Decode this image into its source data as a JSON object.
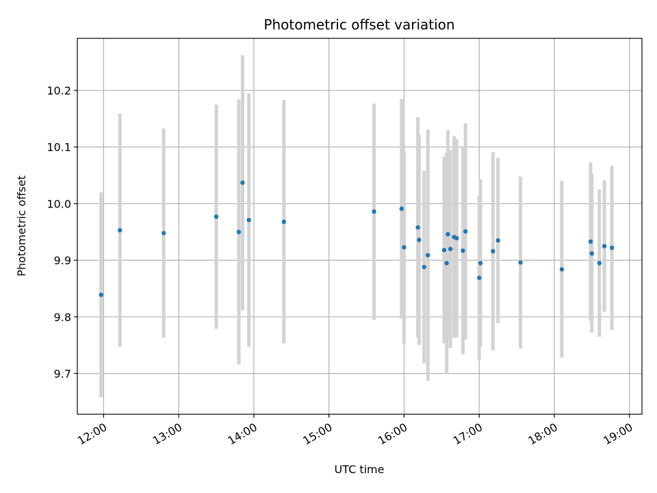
{
  "chart_data": {
    "type": "scatter",
    "title": "Photometric offset variation",
    "xlabel": "UTC time",
    "ylabel": "Photometric offset",
    "x_axis_type": "time",
    "xlim": [
      "11:39",
      "19:10"
    ],
    "ylim": [
      9.628,
      10.292
    ],
    "x_ticks": [
      "12:00",
      "13:00",
      "14:00",
      "15:00",
      "16:00",
      "17:00",
      "18:00",
      "19:00"
    ],
    "y_ticks": [
      "9.7",
      "9.8",
      "9.9",
      "10.0",
      "10.1",
      "10.2"
    ],
    "grid": true,
    "colors": {
      "point": "#1f77b4",
      "errorbar": "#d3d3d3",
      "grid": "#b0b0b0"
    },
    "series": [
      {
        "points": [
          {
            "t": "11:58",
            "y": 9.839,
            "err": 0.181
          },
          {
            "t": "12:13",
            "y": 9.953,
            "err": 0.206
          },
          {
            "t": "12:48",
            "y": 9.948,
            "err": 0.185
          },
          {
            "t": "13:30",
            "y": 9.977,
            "err": 0.198
          },
          {
            "t": "13:48",
            "y": 9.95,
            "err": 0.234
          },
          {
            "t": "13:51",
            "y": 10.037,
            "err": 0.225
          },
          {
            "t": "13:56",
            "y": 9.971,
            "err": 0.224
          },
          {
            "t": "14:24",
            "y": 9.968,
            "err": 0.215
          },
          {
            "t": "15:36",
            "y": 9.986,
            "err": 0.191
          },
          {
            "t": "15:58",
            "y": 9.991,
            "err": 0.194
          },
          {
            "t": "16:00",
            "y": 9.923,
            "err": 0.17
          },
          {
            "t": "16:11",
            "y": 9.958,
            "err": 0.195
          },
          {
            "t": "16:12",
            "y": 9.936,
            "err": 0.186
          },
          {
            "t": "16:16",
            "y": 9.888,
            "err": 0.17
          },
          {
            "t": "16:19",
            "y": 9.909,
            "err": 0.222
          },
          {
            "t": "16:32",
            "y": 9.918,
            "err": 0.165
          },
          {
            "t": "16:34",
            "y": 9.895,
            "err": 0.195
          },
          {
            "t": "16:35",
            "y": 9.946,
            "err": 0.184
          },
          {
            "t": "16:37",
            "y": 9.92,
            "err": 0.175
          },
          {
            "t": "16:40",
            "y": 9.941,
            "err": 0.178
          },
          {
            "t": "16:42",
            "y": 9.939,
            "err": 0.175
          },
          {
            "t": "16:47",
            "y": 9.917,
            "err": 0.183
          },
          {
            "t": "16:49",
            "y": 9.951,
            "err": 0.191
          },
          {
            "t": "17:00",
            "y": 9.869,
            "err": 0.145
          },
          {
            "t": "17:01",
            "y": 9.895,
            "err": 0.148
          },
          {
            "t": "17:11",
            "y": 9.916,
            "err": 0.175
          },
          {
            "t": "17:15",
            "y": 9.935,
            "err": 0.146
          },
          {
            "t": "17:33",
            "y": 9.896,
            "err": 0.152
          },
          {
            "t": "18:06",
            "y": 9.884,
            "err": 0.156
          },
          {
            "t": "18:29",
            "y": 9.933,
            "err": 0.14
          },
          {
            "t": "18:30",
            "y": 9.912,
            "err": 0.14
          },
          {
            "t": "18:36",
            "y": 9.895,
            "err": 0.13
          },
          {
            "t": "18:40",
            "y": 9.925,
            "err": 0.116
          },
          {
            "t": "18:46",
            "y": 9.922,
            "err": 0.145
          }
        ]
      }
    ]
  }
}
